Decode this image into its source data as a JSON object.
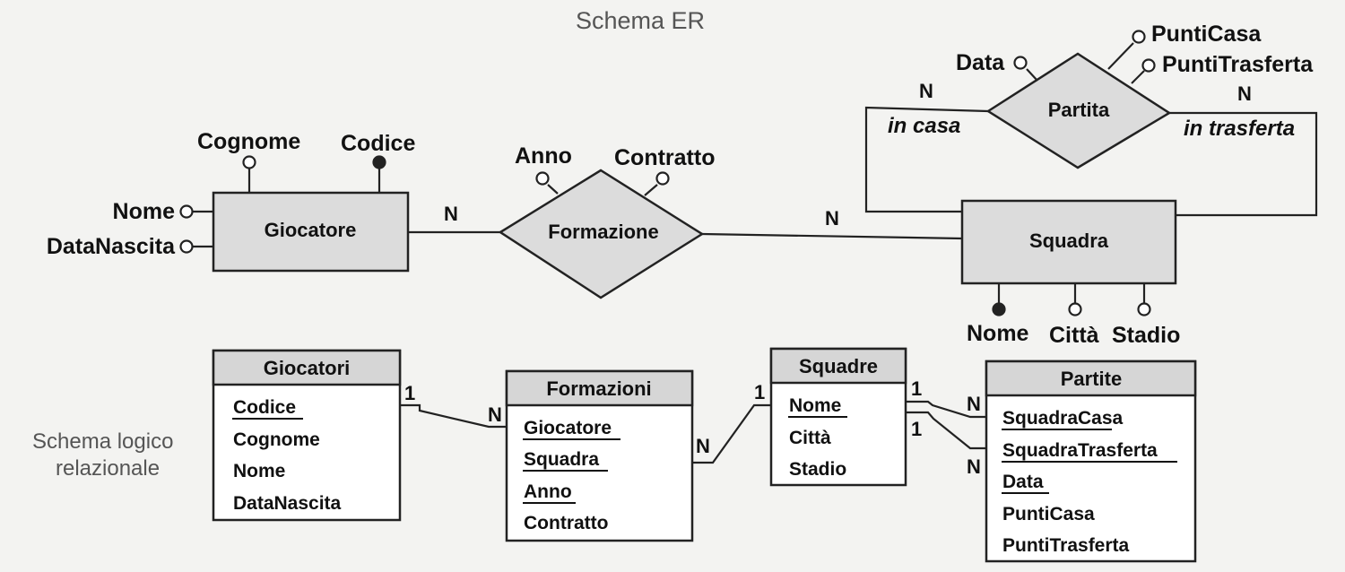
{
  "er_title": "Schema ER",
  "logical_title": [
    "Schema logico",
    "relazionale"
  ],
  "entities": {
    "giocatore": "Giocatore",
    "squadra": "Squadra"
  },
  "relationships": {
    "formazione": "Formazione",
    "partita": "Partita"
  },
  "attributes": {
    "cognome": "Cognome",
    "codice": "Codice",
    "nome": "Nome",
    "data_nascita": "DataNascita",
    "anno": "Anno",
    "contratto": "Contratto",
    "data": "Data",
    "punti_casa": "PuntiCasa",
    "punti_trasferta": "PuntiTrasferta",
    "squadra_nome": "Nome",
    "citta": "Città",
    "stadio": "Stadio"
  },
  "cardinalities": {
    "giocatore_formazione": "N",
    "formazione_squadra": "N",
    "partita_casa": "N",
    "partita_trasferta": "N"
  },
  "roles": {
    "in_casa": "in casa",
    "in_trasferta": "in trasferta"
  },
  "tables": {
    "giocatori": {
      "name": "Giocatori",
      "fields": [
        "Codice",
        "Cognome",
        "Nome",
        "DataNascita"
      ]
    },
    "formazioni": {
      "name": "Formazioni",
      "fields": [
        "Giocatore",
        "Squadra",
        "Anno",
        "Contratto"
      ]
    },
    "squadre": {
      "name": "Squadre",
      "fields": [
        "Nome",
        "Città",
        "Stadio"
      ]
    },
    "partite": {
      "name": "Partite",
      "fields": [
        "SquadraCasa",
        "SquadraTrasferta",
        "Data",
        "PuntiCasa",
        "PuntiTrasferta"
      ]
    }
  },
  "table_links": {
    "giocatori_one": "1",
    "formazioni_n1": "N",
    "formazioni_n2": "N",
    "squadre_one1": "1",
    "squadre_one2": "1",
    "squadre_one3": "1",
    "partite_n1": "N",
    "partite_n2": "N"
  }
}
